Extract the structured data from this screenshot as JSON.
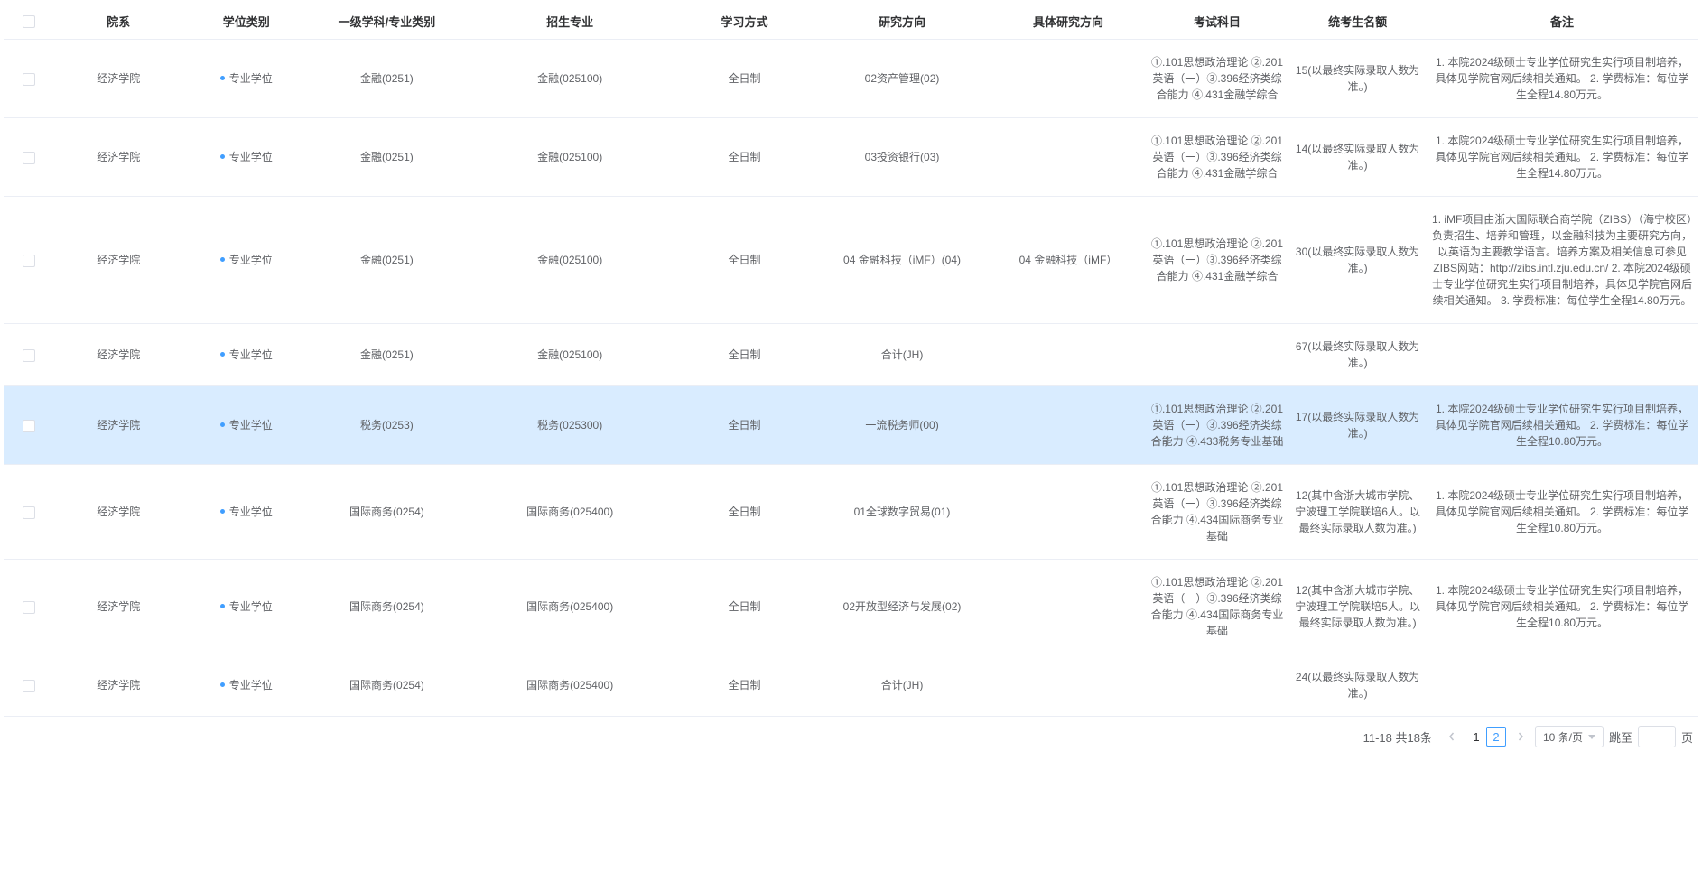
{
  "table": {
    "headers": [
      "院系",
      "学位类别",
      "一级学科/专业类别",
      "招生专业",
      "学习方式",
      "研究方向",
      "具体研究方向",
      "考试科目",
      "统考生名额",
      "备注"
    ],
    "rows": [
      {
        "dept": "经济学院",
        "degree": "专业学位",
        "category": "金融(0251)",
        "major": "金融(025100)",
        "mode": "全日制",
        "direction": "02资产管理(02)",
        "subdir": "",
        "subjects": "①.101思想政治理论 ②.201英语（一）③.396经济类综合能力 ④.431金融学综合",
        "quota": "15(以最终实际录取人数为准。)",
        "note": "1. 本院2024级硕士专业学位研究生实行项目制培养，具体见学院官网后续相关通知。 2. 学费标准：每位学生全程14.80万元。",
        "hl": false
      },
      {
        "dept": "经济学院",
        "degree": "专业学位",
        "category": "金融(0251)",
        "major": "金融(025100)",
        "mode": "全日制",
        "direction": "03投资银行(03)",
        "subdir": "",
        "subjects": "①.101思想政治理论 ②.201英语（一）③.396经济类综合能力 ④.431金融学综合",
        "quota": "14(以最终实际录取人数为准。)",
        "note": "1. 本院2024级硕士专业学位研究生实行项目制培养，具体见学院官网后续相关通知。 2. 学费标准：每位学生全程14.80万元。",
        "hl": false
      },
      {
        "dept": "经济学院",
        "degree": "专业学位",
        "category": "金融(0251)",
        "major": "金融(025100)",
        "mode": "全日制",
        "direction": "04 金融科技（iMF）(04)",
        "subdir": "04 金融科技（iMF）",
        "subjects": "①.101思想政治理论 ②.201英语（一）③.396经济类综合能力 ④.431金融学综合",
        "quota": "30(以最终实际录取人数为准。)",
        "note": "1. iMF项目由浙大国际联合商学院（ZIBS）（海宁校区）负责招生、培养和管理，以金融科技为主要研究方向，以英语为主要教学语言。培养方案及相关信息可参见ZIBS网站：http://zibs.intl.zju.edu.cn/ 2. 本院2024级硕士专业学位研究生实行项目制培养，具体见学院官网后续相关通知。 3. 学费标准：每位学生全程14.80万元。",
        "hl": false
      },
      {
        "dept": "经济学院",
        "degree": "专业学位",
        "category": "金融(0251)",
        "major": "金融(025100)",
        "mode": "全日制",
        "direction": "合计(JH)",
        "subdir": "",
        "subjects": "",
        "quota": "67(以最终实际录取人数为准。)",
        "note": "",
        "hl": false
      },
      {
        "dept": "经济学院",
        "degree": "专业学位",
        "category": "税务(0253)",
        "major": "税务(025300)",
        "mode": "全日制",
        "direction": "一流税务师(00)",
        "subdir": "",
        "subjects": "①.101思想政治理论 ②.201英语（一）③.396经济类综合能力 ④.433税务专业基础",
        "quota": "17(以最终实际录取人数为准。)",
        "note": "1. 本院2024级硕士专业学位研究生实行项目制培养，具体见学院官网后续相关通知。 2. 学费标准：每位学生全程10.80万元。",
        "hl": true
      },
      {
        "dept": "经济学院",
        "degree": "专业学位",
        "category": "国际商务(0254)",
        "major": "国际商务(025400)",
        "mode": "全日制",
        "direction": "01全球数字贸易(01)",
        "subdir": "",
        "subjects": "①.101思想政治理论 ②.201英语（一）③.396经济类综合能力 ④.434国际商务专业基础",
        "quota": "12(其中含浙大城市学院、宁波理工学院联培6人。以最终实际录取人数为准。)",
        "note": "1. 本院2024级硕士专业学位研究生实行项目制培养，具体见学院官网后续相关通知。 2. 学费标准：每位学生全程10.80万元。",
        "hl": false
      },
      {
        "dept": "经济学院",
        "degree": "专业学位",
        "category": "国际商务(0254)",
        "major": "国际商务(025400)",
        "mode": "全日制",
        "direction": "02开放型经济与发展(02)",
        "subdir": "",
        "subjects": "①.101思想政治理论 ②.201英语（一）③.396经济类综合能力 ④.434国际商务专业基础",
        "quota": "12(其中含浙大城市学院、宁波理工学院联培5人。以最终实际录取人数为准。)",
        "note": "1. 本院2024级硕士专业学位研究生实行项目制培养，具体见学院官网后续相关通知。 2. 学费标准：每位学生全程10.80万元。",
        "hl": false
      },
      {
        "dept": "经济学院",
        "degree": "专业学位",
        "category": "国际商务(0254)",
        "major": "国际商务(025400)",
        "mode": "全日制",
        "direction": "合计(JH)",
        "subdir": "",
        "subjects": "",
        "quota": "24(以最终实际录取人数为准。)",
        "note": "",
        "hl": false
      }
    ]
  },
  "pagination": {
    "info": "11-18 共18条",
    "pages": [
      "1",
      "2"
    ],
    "active_index": 1,
    "pagesize_label": "10 条/页",
    "jump_pre": "跳至",
    "jump_post": "页"
  }
}
